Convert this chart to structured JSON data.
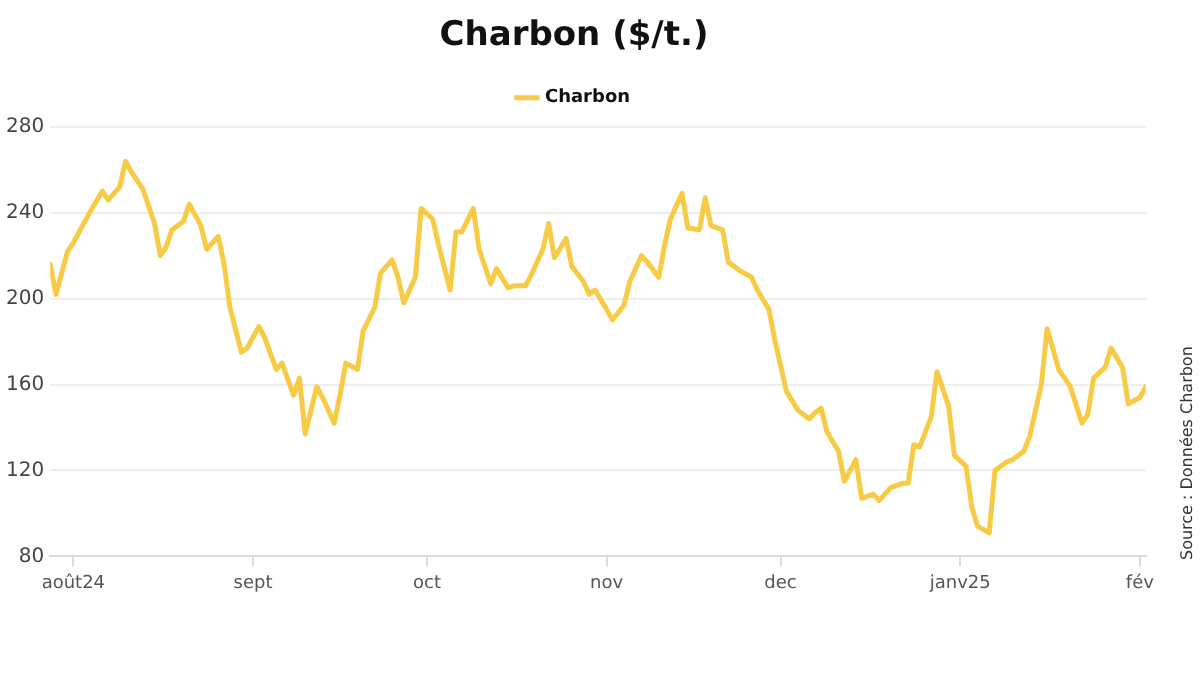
{
  "chart_data": {
    "type": "line",
    "title": "Charbon ($/t.)",
    "annotations": [
      "Source : Données Charbon"
    ],
    "legend": "top",
    "grid": "y",
    "marker": "none",
    "line_style": "solid",
    "xlim": [
      "2024-07-28",
      "2025-02-02"
    ],
    "xticks": [
      {
        "value": "2024-08-01",
        "label": "août24"
      },
      {
        "value": "2024-09-01",
        "label": "sept"
      },
      {
        "value": "2024-10-01",
        "label": "oct"
      },
      {
        "value": "2024-11-01",
        "label": "nov"
      },
      {
        "value": "2024-12-01",
        "label": "dec"
      },
      {
        "value": "2025-01-01",
        "label": "janv25"
      },
      {
        "value": "2025-02-01",
        "label": "fév"
      }
    ],
    "ylim": [
      80,
      280
    ],
    "yticks": [
      80,
      120,
      160,
      200,
      240,
      280
    ],
    "x": [
      "2024-07-28",
      "2024-07-29",
      "2024-07-31",
      "2024-08-01",
      "2024-08-04",
      "2024-08-06",
      "2024-08-07",
      "2024-08-09",
      "2024-08-10",
      "2024-08-11",
      "2024-08-13",
      "2024-08-15",
      "2024-08-16",
      "2024-08-17",
      "2024-08-18",
      "2024-08-20",
      "2024-08-21",
      "2024-08-23",
      "2024-08-24",
      "2024-08-26",
      "2024-08-27",
      "2024-08-28",
      "2024-08-30",
      "2024-08-31",
      "2024-09-02",
      "2024-09-03",
      "2024-09-05",
      "2024-09-06",
      "2024-09-08",
      "2024-09-09",
      "2024-09-10",
      "2024-09-12",
      "2024-09-13",
      "2024-09-15",
      "2024-09-16",
      "2024-09-17",
      "2024-09-19",
      "2024-09-20",
      "2024-09-22",
      "2024-09-23",
      "2024-09-25",
      "2024-09-26",
      "2024-09-27",
      "2024-09-29",
      "2024-09-30",
      "2024-10-02",
      "2024-10-03",
      "2024-10-05",
      "2024-10-06",
      "2024-10-07",
      "2024-10-09",
      "2024-10-10",
      "2024-10-12",
      "2024-10-13",
      "2024-10-15",
      "2024-10-16",
      "2024-10-18",
      "2024-10-19",
      "2024-10-21",
      "2024-10-22",
      "2024-10-23",
      "2024-10-25",
      "2024-10-26",
      "2024-10-28",
      "2024-10-29",
      "2024-10-30",
      "2024-11-01",
      "2024-11-02",
      "2024-11-04",
      "2024-11-05",
      "2024-11-07",
      "2024-11-08",
      "2024-11-10",
      "2024-11-11",
      "2024-11-12",
      "2024-11-14",
      "2024-11-15",
      "2024-11-17",
      "2024-11-18",
      "2024-11-19",
      "2024-11-21",
      "2024-11-22",
      "2024-11-24",
      "2024-11-26",
      "2024-11-27",
      "2024-11-29",
      "2024-11-30",
      "2024-12-01",
      "2024-12-02",
      "2024-12-04",
      "2024-12-06",
      "2024-12-07",
      "2024-12-08",
      "2024-12-09",
      "2024-12-11",
      "2024-12-12",
      "2024-12-14",
      "2024-12-15",
      "2024-12-17",
      "2024-12-18",
      "2024-12-20",
      "2024-12-22",
      "2024-12-23",
      "2024-12-24",
      "2024-12-25",
      "2024-12-27",
      "2024-12-28",
      "2024-12-30",
      "2024-12-31",
      "2025-01-02",
      "2025-01-03",
      "2025-01-04",
      "2025-01-06",
      "2025-01-07",
      "2025-01-09",
      "2025-01-10",
      "2025-01-12",
      "2025-01-13",
      "2025-01-15",
      "2025-01-16",
      "2025-01-18",
      "2025-01-19",
      "2025-01-20",
      "2025-01-22",
      "2025-01-23",
      "2025-01-24",
      "2025-01-26",
      "2025-01-27",
      "2025-01-29",
      "2025-01-30",
      "2025-02-01",
      "2025-02-02"
    ],
    "series": [
      {
        "name": "Charbon",
        "color": "#f7cb45",
        "values": [
          216,
          202,
          222,
          226,
          241,
          250,
          246,
          252,
          264,
          259,
          251,
          235,
          220,
          224,
          232,
          236,
          244,
          234,
          223,
          229,
          216,
          196,
          175,
          177,
          187,
          182,
          167,
          170,
          155,
          163,
          137,
          159,
          154,
          142,
          155,
          170,
          167,
          185,
          196,
          212,
          218,
          210,
          198,
          210,
          242,
          237,
          225,
          204,
          231,
          231,
          242,
          223,
          207,
          214,
          205,
          206,
          206,
          211,
          223,
          235,
          219,
          228,
          215,
          208,
          202,
          204,
          195,
          190,
          197,
          208,
          220,
          217,
          210,
          225,
          237,
          249,
          233,
          232,
          247,
          234,
          232,
          217,
          213,
          210,
          204,
          195,
          181,
          169,
          157,
          148,
          144,
          147,
          149,
          138,
          129,
          115,
          125,
          107,
          109,
          106,
          112,
          114,
          114,
          132,
          131,
          145,
          166,
          150,
          127,
          122,
          103,
          94,
          91,
          120,
          124,
          125,
          129,
          136,
          160,
          186,
          167,
          163,
          159,
          142,
          146,
          163,
          168,
          177,
          168,
          151,
          154,
          159
        ]
      }
    ]
  }
}
